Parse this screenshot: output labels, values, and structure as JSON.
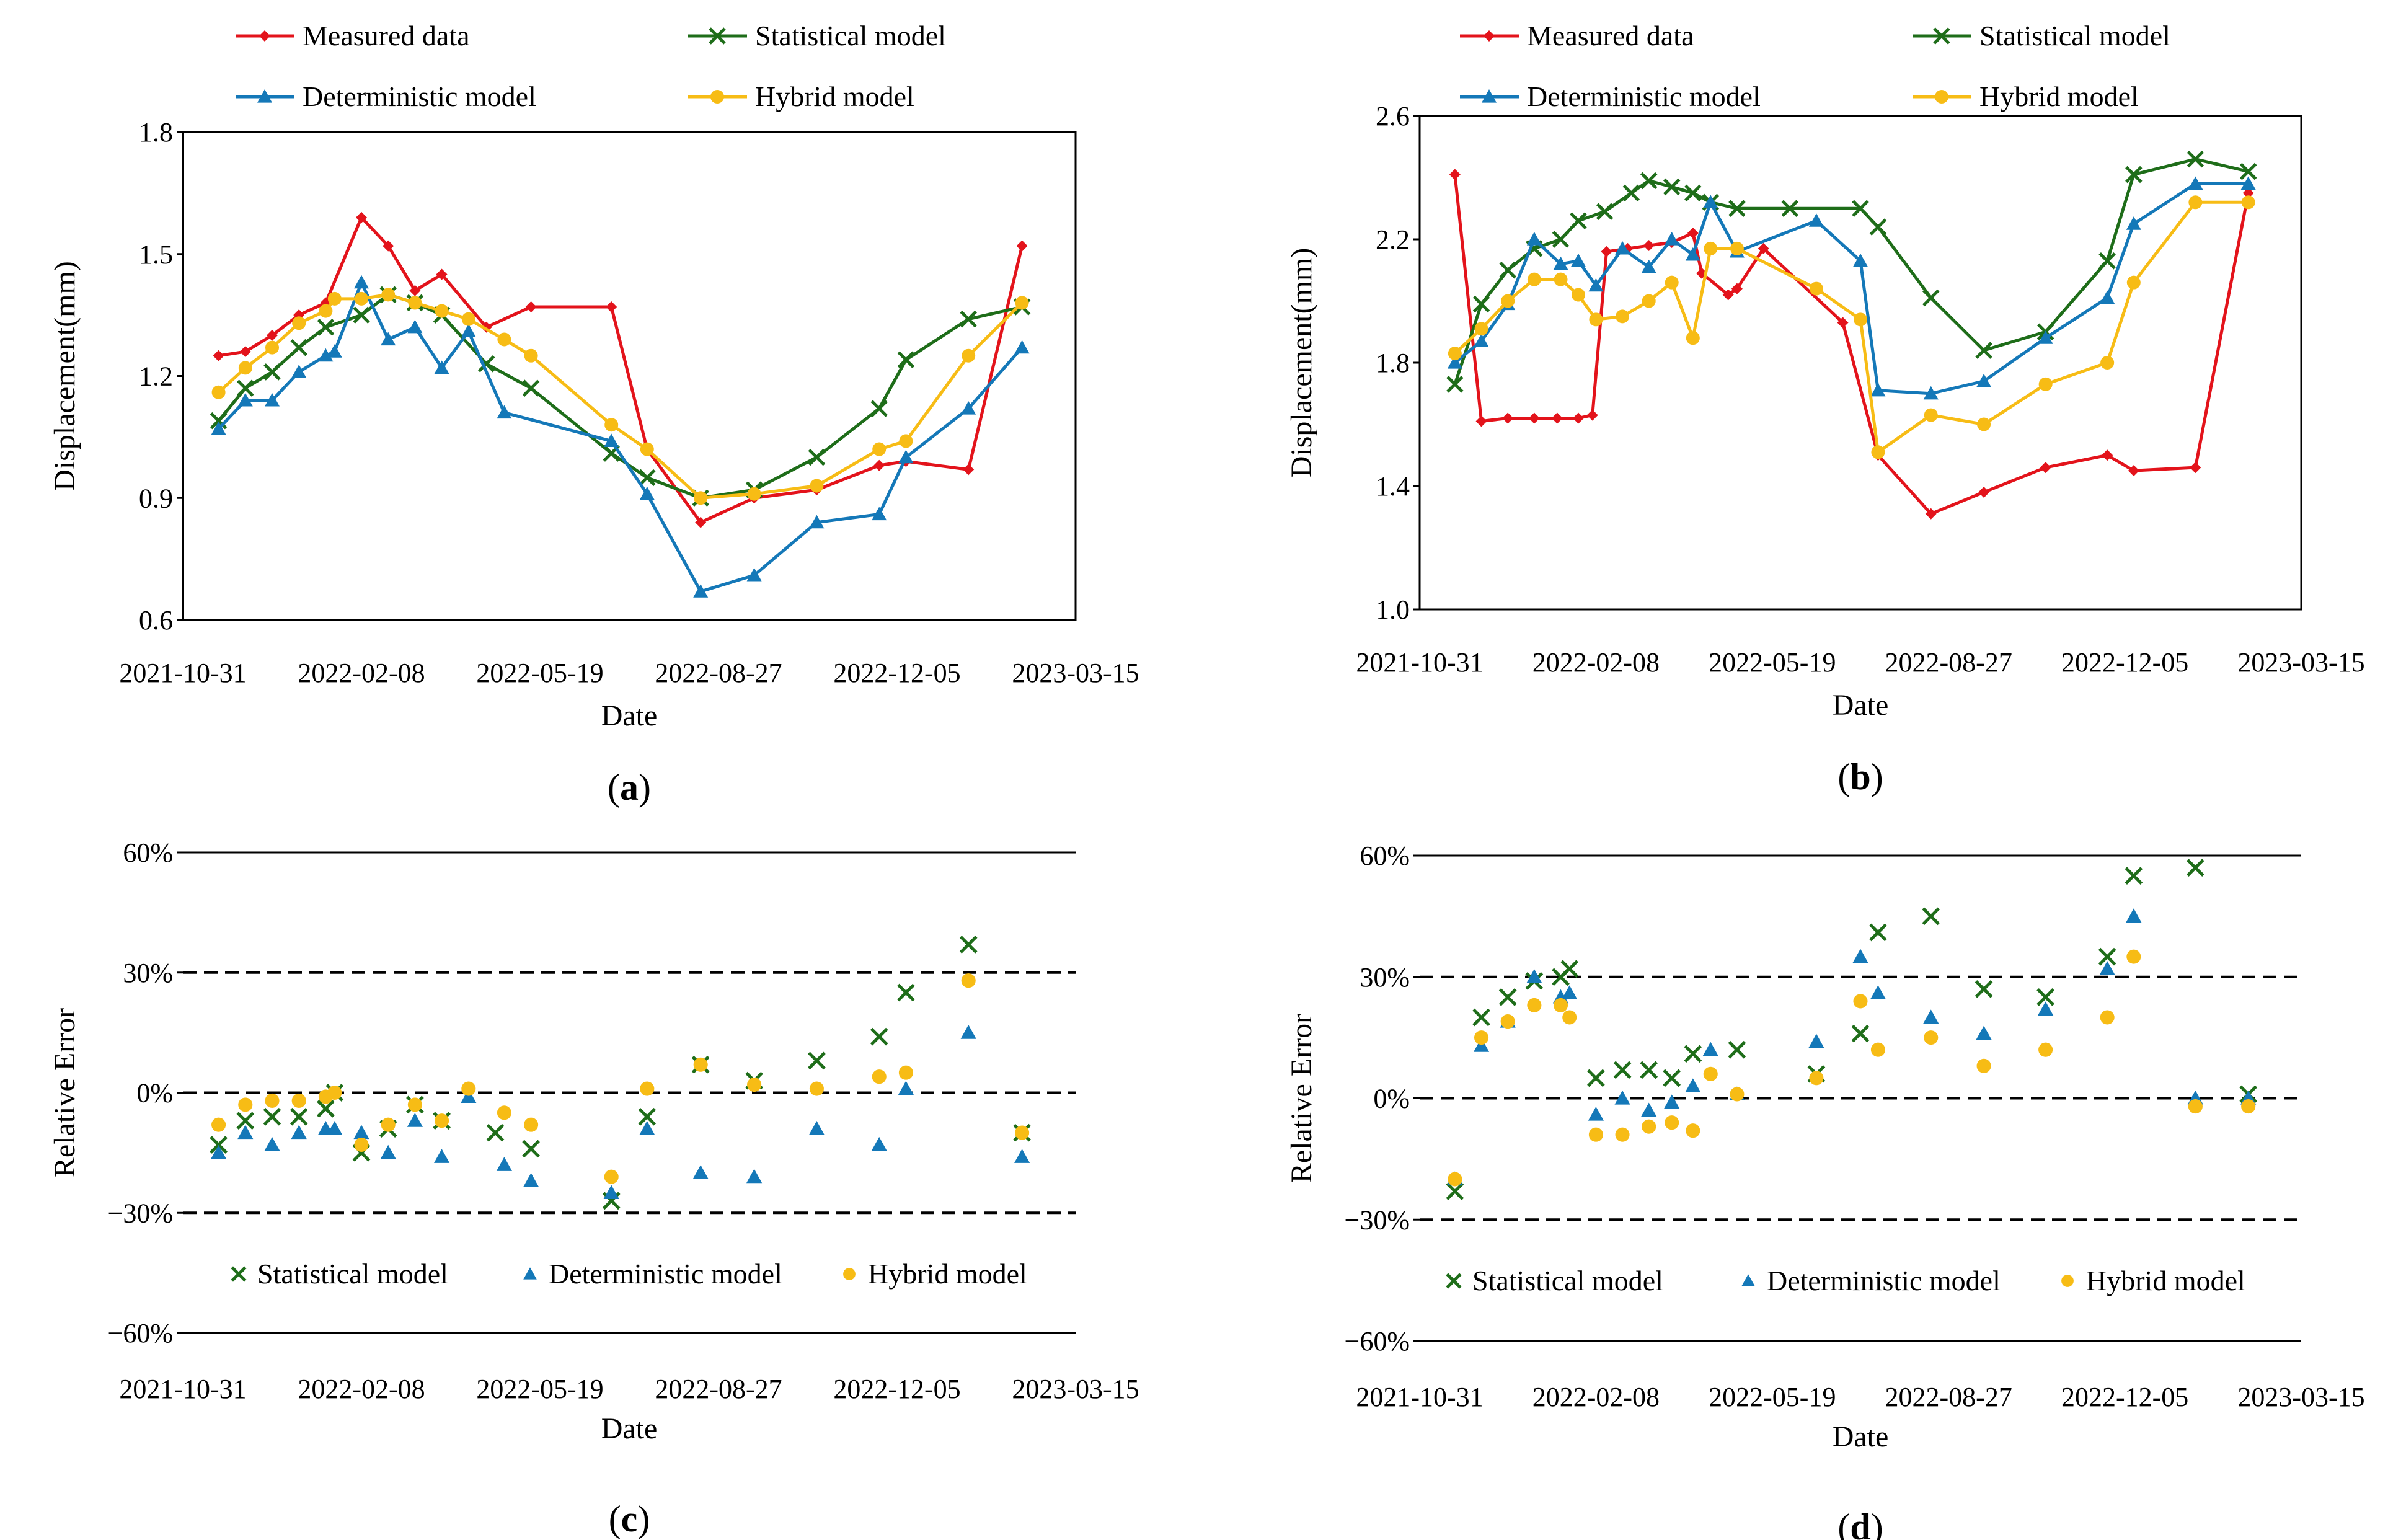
{
  "chart_data": [
    {
      "id": "a",
      "type": "line",
      "panel_label": "(a)",
      "panel_letter": "a",
      "xlabel": "Date",
      "ylabel": "Displacement(mm)",
      "ylim": [
        0.6,
        1.8
      ],
      "yticks": [
        "0.6",
        "0.9",
        "1.2",
        "1.5",
        "1.8"
      ],
      "ytick_values": [
        0.6,
        0.9,
        1.2,
        1.5,
        1.8
      ],
      "xlim": [
        0,
        500
      ],
      "xticks": [
        "2021-10-31",
        "2022-02-08",
        "2022-05-19",
        "2022-08-27",
        "2022-12-05",
        "2023-03-15"
      ],
      "legend": [
        "Measured data",
        "Statistical model",
        "Deterministic model",
        "Hybrid model"
      ],
      "series": [
        {
          "name": "Measured data",
          "color": "#e3131b",
          "marker": "diamond",
          "x": [
            20,
            35,
            50,
            65,
            80,
            100,
            115,
            130,
            145,
            170,
            195,
            240,
            260,
            290,
            320,
            355,
            390,
            405,
            440,
            470
          ],
          "values": [
            1.25,
            1.26,
            1.3,
            1.35,
            1.38,
            1.59,
            1.52,
            1.41,
            1.45,
            1.32,
            1.37,
            1.37,
            1.02,
            0.84,
            0.9,
            0.92,
            0.98,
            0.99,
            0.97,
            1.52
          ]
        },
        {
          "name": "Statistical model",
          "color": "#1e6d19",
          "marker": "cross",
          "x": [
            20,
            35,
            50,
            65,
            80,
            100,
            115,
            130,
            145,
            170,
            195,
            240,
            260,
            290,
            320,
            355,
            390,
            405,
            440,
            470
          ],
          "values": [
            1.09,
            1.17,
            1.21,
            1.27,
            1.32,
            1.35,
            1.4,
            1.38,
            1.35,
            1.23,
            1.17,
            1.01,
            0.95,
            0.9,
            0.92,
            1.0,
            1.12,
            1.24,
            1.34,
            1.37
          ]
        },
        {
          "name": "Deterministic model",
          "color": "#1478b8",
          "marker": "triangle",
          "x": [
            20,
            35,
            50,
            65,
            80,
            85,
            100,
            115,
            130,
            145,
            160,
            180,
            240,
            260,
            290,
            320,
            355,
            390,
            405,
            440,
            470
          ],
          "values": [
            1.07,
            1.14,
            1.14,
            1.21,
            1.25,
            1.26,
            1.43,
            1.29,
            1.32,
            1.22,
            1.31,
            1.11,
            1.04,
            0.91,
            0.67,
            0.71,
            0.84,
            0.86,
            1.0,
            1.12,
            1.27
          ]
        },
        {
          "name": "Hybrid model",
          "color": "#f7bc15",
          "marker": "circle",
          "x": [
            20,
            35,
            50,
            65,
            80,
            85,
            100,
            115,
            130,
            145,
            160,
            180,
            195,
            240,
            260,
            290,
            320,
            355,
            390,
            405,
            440,
            470
          ],
          "values": [
            1.16,
            1.22,
            1.27,
            1.33,
            1.36,
            1.39,
            1.39,
            1.4,
            1.38,
            1.36,
            1.34,
            1.29,
            1.25,
            1.08,
            1.02,
            0.9,
            0.91,
            0.93,
            1.02,
            1.04,
            1.25,
            1.38
          ]
        }
      ]
    },
    {
      "id": "b",
      "type": "line",
      "panel_label": "(b)",
      "panel_letter": "b",
      "xlabel": "Date",
      "ylabel": "Displacement(mm)",
      "ylim": [
        1.0,
        2.6
      ],
      "yticks": [
        "1.0",
        "1.4",
        "1.8",
        "2.2",
        "2.6"
      ],
      "ytick_values": [
        1.0,
        1.4,
        1.8,
        2.2,
        2.6
      ],
      "xlim": [
        0,
        500
      ],
      "xticks": [
        "2021-10-31",
        "2022-02-08",
        "2022-05-19",
        "2022-08-27",
        "2022-12-05",
        "2023-03-15"
      ],
      "legend": [
        "Measured data",
        "Statistical model",
        "Deterministic model",
        "Hybrid model"
      ],
      "series": [
        {
          "name": "Measured data",
          "color": "#e3131b",
          "marker": "diamond",
          "x": [
            20,
            35,
            50,
            65,
            78,
            90,
            98,
            106,
            118,
            130,
            143,
            155,
            160,
            175,
            180,
            195,
            240,
            260,
            290,
            320,
            355,
            390,
            405,
            440,
            470
          ],
          "values": [
            2.41,
            1.61,
            1.62,
            1.62,
            1.62,
            1.62,
            1.63,
            2.16,
            2.17,
            2.18,
            2.19,
            2.22,
            2.09,
            2.02,
            2.04,
            2.17,
            1.93,
            1.5,
            1.31,
            1.38,
            1.46,
            1.5,
            1.45,
            1.46,
            2.35
          ]
        },
        {
          "name": "Statistical model",
          "color": "#1e6d19",
          "marker": "cross",
          "x": [
            20,
            35,
            50,
            65,
            80,
            90,
            105,
            120,
            130,
            143,
            155,
            165,
            180,
            210,
            250,
            260,
            290,
            320,
            355,
            390,
            405,
            440,
            470
          ],
          "values": [
            1.73,
            1.99,
            2.1,
            2.17,
            2.2,
            2.26,
            2.29,
            2.35,
            2.39,
            2.37,
            2.35,
            2.32,
            2.3,
            2.3,
            2.3,
            2.24,
            2.01,
            1.84,
            1.9,
            2.13,
            2.41,
            2.46,
            2.42
          ]
        },
        {
          "name": "Deterministic model",
          "color": "#1478b8",
          "marker": "triangle",
          "x": [
            20,
            35,
            50,
            65,
            80,
            90,
            100,
            115,
            130,
            143,
            155,
            165,
            180,
            225,
            250,
            260,
            290,
            320,
            355,
            390,
            405,
            440,
            470
          ],
          "values": [
            1.8,
            1.87,
            1.99,
            2.2,
            2.12,
            2.13,
            2.05,
            2.17,
            2.11,
            2.2,
            2.15,
            2.32,
            2.16,
            2.26,
            2.13,
            1.71,
            1.7,
            1.74,
            1.88,
            2.01,
            2.25,
            2.38,
            2.38
          ]
        },
        {
          "name": "Hybrid model",
          "color": "#f7bc15",
          "marker": "circle",
          "x": [
            20,
            35,
            50,
            65,
            80,
            90,
            100,
            115,
            130,
            143,
            155,
            165,
            180,
            225,
            250,
            260,
            290,
            320,
            355,
            390,
            405,
            440,
            470
          ],
          "values": [
            1.83,
            1.91,
            2.0,
            2.07,
            2.07,
            2.02,
            1.94,
            1.95,
            2.0,
            2.06,
            1.88,
            2.17,
            2.17,
            2.04,
            1.94,
            1.51,
            1.63,
            1.6,
            1.73,
            1.8,
            2.06,
            2.32,
            2.32
          ]
        }
      ]
    },
    {
      "id": "c",
      "type": "scatter",
      "panel_label": "(c)",
      "panel_letter": "c",
      "xlabel": "Date",
      "ylabel": "Relative Error",
      "ylim": [
        -60,
        60
      ],
      "yticks": [
        "−60%",
        "−30%",
        "0%",
        "30%",
        "60%"
      ],
      "ytick_values": [
        -60,
        -30,
        0,
        30,
        60
      ],
      "reference_lines": [
        -30,
        0,
        30
      ],
      "xlim": [
        0,
        500
      ],
      "xticks": [
        "2021-10-31",
        "2022-02-08",
        "2022-05-19",
        "2022-08-27",
        "2022-12-05",
        "2023-03-15"
      ],
      "legend": [
        "Statistical model",
        "Deterministic model",
        "Hybrid model"
      ],
      "series": [
        {
          "name": "Statistical model",
          "color": "#1e6d19",
          "marker": "cross",
          "x": [
            20,
            35,
            50,
            65,
            80,
            85,
            100,
            115,
            130,
            145,
            175,
            195,
            240,
            260,
            290,
            320,
            355,
            390,
            405,
            440,
            470
          ],
          "values": [
            -13,
            -7,
            -6,
            -6,
            -4,
            0,
            -15,
            -9,
            -3,
            -7,
            -10,
            -14,
            -27,
            -6,
            7,
            3,
            8,
            14,
            25,
            37,
            -10
          ]
        },
        {
          "name": "Deterministic model",
          "color": "#1478b8",
          "marker": "triangle",
          "x": [
            20,
            35,
            50,
            65,
            80,
            85,
            100,
            115,
            130,
            145,
            160,
            180,
            195,
            240,
            260,
            290,
            320,
            355,
            390,
            405,
            440,
            470
          ],
          "values": [
            -15,
            -10,
            -13,
            -10,
            -9,
            -9,
            -10,
            -15,
            -7,
            -16,
            -1,
            -18,
            -22,
            -25,
            -9,
            -20,
            -21,
            -9,
            -13,
            1,
            15,
            -16
          ]
        },
        {
          "name": "Hybrid model",
          "color": "#f7bc15",
          "marker": "circle",
          "x": [
            20,
            35,
            50,
            65,
            80,
            85,
            100,
            115,
            130,
            145,
            160,
            180,
            195,
            240,
            260,
            290,
            320,
            355,
            390,
            405,
            440,
            470
          ],
          "values": [
            -8,
            -3,
            -2,
            -2,
            -1,
            0,
            -13,
            -8,
            -3,
            -7,
            1,
            -5,
            -8,
            -21,
            1,
            7,
            2,
            1,
            4,
            5,
            28,
            -10
          ]
        }
      ]
    },
    {
      "id": "d",
      "type": "scatter",
      "panel_label": "(d)",
      "panel_letter": "d",
      "xlabel": "Date",
      "ylabel": "Relative Error",
      "ylim": [
        -60,
        60
      ],
      "yticks": [
        "−60%",
        "−30%",
        "0%",
        "30%",
        "60%"
      ],
      "ytick_values": [
        -60,
        -30,
        0,
        30,
        60
      ],
      "reference_lines": [
        -30,
        0,
        30
      ],
      "xlim": [
        0,
        500
      ],
      "xticks": [
        "2021-10-31",
        "2022-02-08",
        "2022-05-19",
        "2022-08-27",
        "2022-12-05",
        "2023-03-15"
      ],
      "legend": [
        "Statistical model",
        "Deterministic model",
        "Hybrid model"
      ],
      "series": [
        {
          "name": "Statistical model",
          "color": "#1e6d19",
          "marker": "cross",
          "x": [
            20,
            35,
            50,
            65,
            80,
            85,
            100,
            115,
            130,
            143,
            155,
            180,
            225,
            250,
            260,
            290,
            320,
            355,
            390,
            405,
            440,
            470
          ],
          "values": [
            -23,
            20,
            25,
            29,
            30,
            32,
            5,
            7,
            7,
            5,
            11,
            12,
            6,
            16,
            41,
            45,
            27,
            25,
            35,
            55,
            57,
            1
          ]
        },
        {
          "name": "Deterministic model",
          "color": "#1478b8",
          "marker": "triangle",
          "x": [
            20,
            35,
            50,
            65,
            80,
            85,
            100,
            115,
            130,
            143,
            155,
            165,
            180,
            225,
            250,
            260,
            290,
            320,
            355,
            390,
            405,
            440,
            470
          ],
          "values": [
            -20,
            13,
            19,
            30,
            25,
            26,
            -4,
            0,
            -3,
            -1,
            3,
            12,
            1,
            14,
            35,
            26,
            20,
            16,
            22,
            32,
            45,
            0,
            0
          ]
        },
        {
          "name": "Hybrid model",
          "color": "#f7bc15",
          "marker": "circle",
          "x": [
            20,
            35,
            50,
            65,
            80,
            85,
            100,
            115,
            130,
            143,
            155,
            165,
            180,
            225,
            250,
            260,
            290,
            320,
            355,
            390,
            405,
            440,
            470
          ],
          "values": [
            -20,
            15,
            19,
            23,
            23,
            20,
            -9,
            -9,
            -7,
            -6,
            -8,
            6,
            1,
            5,
            24,
            12,
            15,
            8,
            12,
            20,
            35,
            -2,
            -2
          ]
        }
      ]
    }
  ]
}
